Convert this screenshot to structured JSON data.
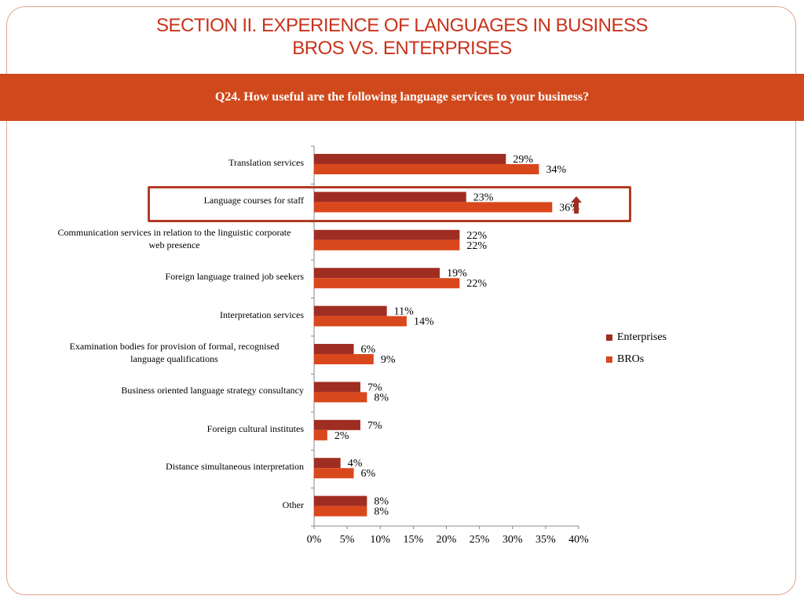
{
  "header": {
    "title_line1": "SECTION II. EXPERIENCE OF LANGUAGES IN BUSINESS",
    "title_line2": "BROS VS. ENTERPRISES",
    "question": "Q24. How useful are the following language services to your business?"
  },
  "colors": {
    "enterprises": "#a02d22",
    "bros": "#d9481c",
    "title": "#c8321a",
    "band": "#d0491c"
  },
  "chart_data": {
    "type": "bar",
    "orientation": "horizontal",
    "categories": [
      "Translation services",
      "Language courses for staff",
      "Communication services in relation to the linguistic corporate web presence",
      "Foreign language trained job seekers",
      "Interpretation services",
      "Examination bodies for provision of formal, recognised language qualifications",
      "Business oriented language strategy consultancy",
      "Foreign cultural institutes",
      "Distance simultaneous interpretation",
      "Other"
    ],
    "category_lines": [
      [
        "Translation services"
      ],
      [
        "Language courses for staff"
      ],
      [
        "Communication services in relation to the linguistic corporate",
        "web presence"
      ],
      [
        "Foreign language trained job seekers"
      ],
      [
        "Interpretation services"
      ],
      [
        "Examination bodies for provision of formal, recognised",
        "language qualifications"
      ],
      [
        "Business oriented language strategy consultancy"
      ],
      [
        "Foreign cultural institutes"
      ],
      [
        "Distance simultaneous interpretation"
      ],
      [
        "Other"
      ]
    ],
    "series": [
      {
        "name": "Enterprises",
        "values": [
          29,
          23,
          22,
          19,
          11,
          6,
          7,
          7,
          4,
          8
        ],
        "labels": [
          "29%",
          "23%",
          "22%",
          "19%",
          "11%",
          "6%",
          "7%",
          "7%",
          "4%",
          "8%"
        ]
      },
      {
        "name": "BROs",
        "values": [
          34,
          36,
          22,
          22,
          14,
          9,
          8,
          2,
          6,
          8
        ],
        "labels": [
          "34%",
          "36%",
          "22%",
          "22%",
          "14%",
          "9%",
          "8%",
          "2%",
          "6%",
          "8%"
        ]
      }
    ],
    "xlim": [
      0,
      40
    ],
    "xticks": [
      0,
      5,
      10,
      15,
      20,
      25,
      30,
      35,
      40
    ],
    "xtick_labels": [
      "0%",
      "5%",
      "10%",
      "15%",
      "20%",
      "25%",
      "30%",
      "35%",
      "40%"
    ],
    "legend_position": "right",
    "grid": false,
    "highlighted_category": "Language courses for staff"
  },
  "legend": {
    "enterprises": "Enterprises",
    "bros": "BROs"
  }
}
